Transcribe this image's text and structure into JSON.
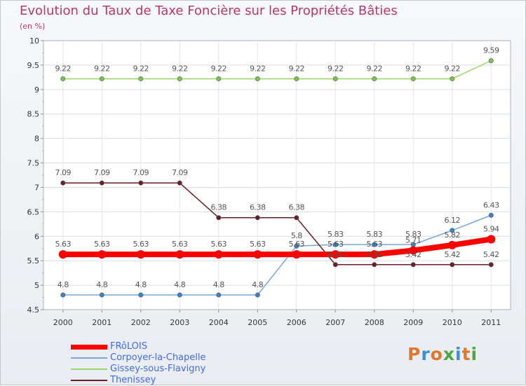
{
  "title": "Evolution du Taux de Taxe Foncière sur les Propriétés Bâties",
  "unit_label": "(en %)",
  "logo": {
    "text": "Proxiti",
    "colors": [
      "#e8742a",
      "#3a8fd9",
      "#e8742a",
      "#4da640",
      "#3a8fd9",
      "#e8742a",
      "#4da640"
    ]
  },
  "chart_data": {
    "type": "line",
    "title": "Evolution du Taux de Taxe Foncière sur les Propriétés Bâties",
    "ylabel": "(en %)",
    "xlabel": "",
    "ylim": [
      4.5,
      10
    ],
    "y_ticks": [
      "4.5",
      "5",
      "5.5",
      "6",
      "6.5",
      "7",
      "7.5",
      "8",
      "8.5",
      "9",
      "9.5",
      "10"
    ],
    "categories": [
      "2000",
      "2001",
      "2002",
      "2003",
      "2004",
      "2005",
      "2006",
      "2007",
      "2008",
      "2009",
      "2010",
      "2011"
    ],
    "grid": true,
    "legend_position": "bottom-left",
    "series": [
      {
        "name": "FRôLOIS",
        "color": "#ff0000",
        "marker": "#ff0000",
        "values": [
          5.63,
          5.63,
          5.63,
          5.63,
          5.63,
          5.63,
          5.63,
          5.63,
          5.63,
          5.71,
          5.82,
          5.94
        ],
        "labels": [
          "5.63",
          "5.63",
          "5.63",
          "5.63",
          "5.63",
          "5.63",
          "5.63",
          "5.63",
          "5.63",
          "5.71",
          "5.82",
          "5.94"
        ]
      },
      {
        "name": "Corpoyer-la-Chapelle",
        "color": "#7aa7d6",
        "marker": "#3a82c8",
        "values": [
          4.8,
          4.8,
          4.8,
          4.8,
          4.8,
          4.8,
          5.8,
          5.83,
          5.83,
          5.83,
          6.12,
          6.43
        ],
        "labels": [
          "4.8",
          "4.8",
          "4.8",
          "4.8",
          "4.8",
          "4.8",
          "5.8",
          "5.83",
          "5.83",
          "5.83",
          "6.12",
          "6.43"
        ]
      },
      {
        "name": "Gissey-sous-Flavigny",
        "color": "#9bd66a",
        "marker": "#7cc24a",
        "values": [
          9.22,
          9.22,
          9.22,
          9.22,
          9.22,
          9.22,
          9.22,
          9.22,
          9.22,
          9.22,
          9.22,
          9.59
        ],
        "labels": [
          "9.22",
          "9.22",
          "9.22",
          "9.22",
          "9.22",
          "9.22",
          "9.22",
          "9.22",
          "9.22",
          "9.22",
          "9.22",
          "9.59"
        ]
      },
      {
        "name": "Thenissey",
        "color": "#6b1f24",
        "marker": "#6b1f24",
        "values": [
          7.09,
          7.09,
          7.09,
          7.09,
          6.38,
          6.38,
          6.38,
          5.42,
          5.42,
          5.42,
          5.42,
          5.42
        ],
        "labels": [
          "7.09",
          "7.09",
          "7.09",
          "7.09",
          "6.38",
          "6.38",
          "6.38",
          "5.42",
          "5.42",
          "5.42",
          "5.42",
          "5.42"
        ]
      }
    ]
  }
}
